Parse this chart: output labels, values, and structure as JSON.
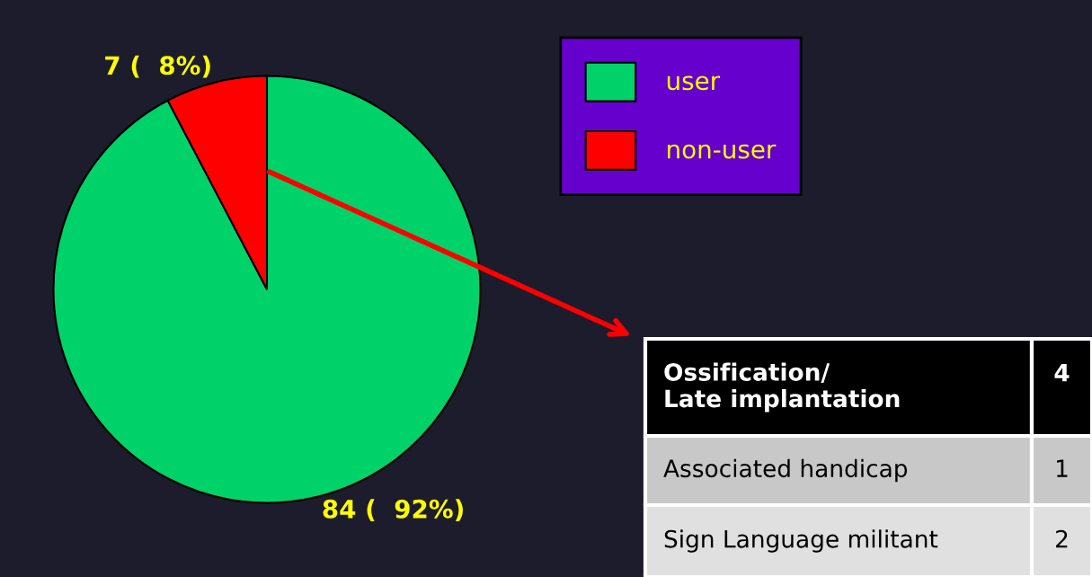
{
  "chart_data": {
    "type": "pie",
    "categories": [
      "user",
      "non-user"
    ],
    "values": [
      84,
      7
    ],
    "colors": [
      "#00d26a",
      "#ff0000"
    ],
    "value_labels": [
      "84 (  92%)",
      "7 (  8%)"
    ],
    "legend": "top right",
    "annotations": [
      "Ossification/\nLate implantation",
      "4",
      "Associated handicap",
      "1",
      "Sign Language militant",
      "2"
    ]
  }
}
